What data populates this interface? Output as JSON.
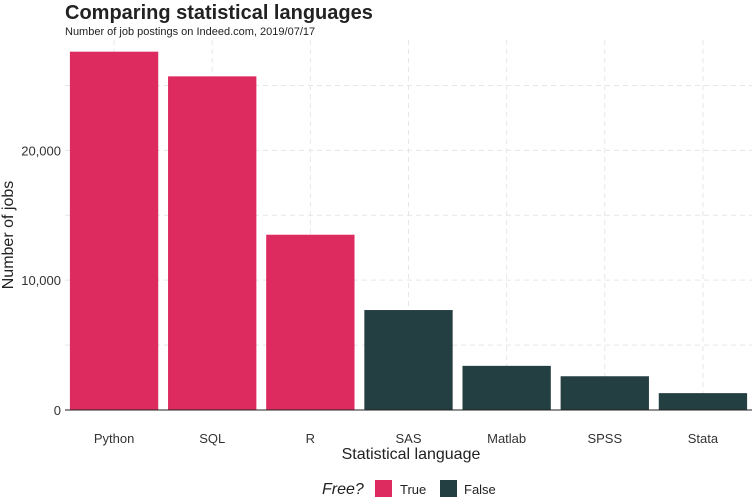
{
  "chart_data": {
    "type": "bar",
    "title": "Comparing statistical languages",
    "subtitle": "Number of job postings on Indeed.com, 2019/07/17",
    "xlabel": "Statistical language",
    "ylabel": "Number of jobs",
    "categories": [
      "Python",
      "SQL",
      "R",
      "SAS",
      "Matlab",
      "SPSS",
      "Stata"
    ],
    "values": [
      27600,
      25700,
      13500,
      7700,
      3400,
      2600,
      1300
    ],
    "free": [
      true,
      true,
      true,
      false,
      false,
      false,
      false
    ],
    "ylim": [
      0,
      28500
    ],
    "yticks": [
      0,
      10000,
      20000
    ],
    "ytick_labels": [
      "0",
      "10,000",
      "20,000"
    ],
    "grid": true,
    "legend": {
      "title": "Free?",
      "position": "bottom",
      "entries": [
        {
          "label": "True",
          "color": "#dd2a5f"
        },
        {
          "label": "False",
          "color": "#243f42"
        }
      ]
    },
    "colors": {
      "true": "#dd2a5f",
      "false": "#243f42"
    }
  }
}
